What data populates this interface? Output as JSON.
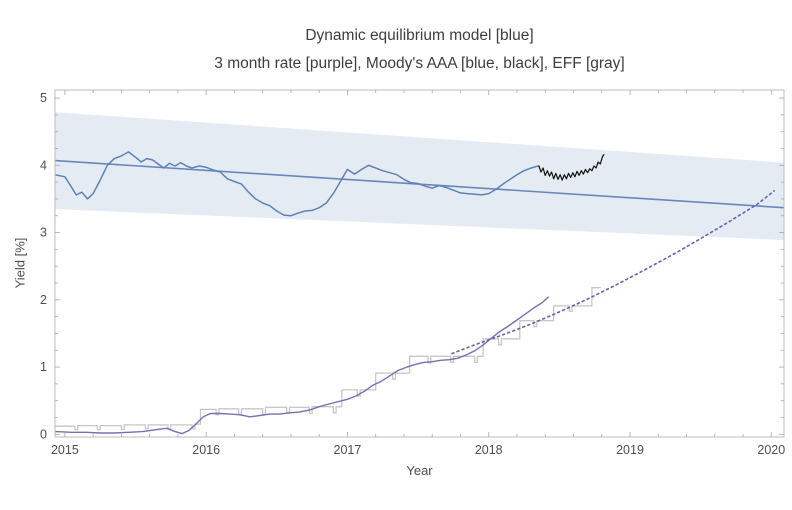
{
  "chart_data": {
    "type": "line",
    "title": "Dynamic equilibrium model [blue]",
    "subtitle": "3 month rate [purple], Moody's AAA [blue, black], EFF [gray]",
    "xlabel": "Year",
    "ylabel": "Yield [%]",
    "xlim": [
      2014.93,
      2020.09
    ],
    "ylim": [
      -0.04,
      5.12
    ],
    "xticks": [
      2015,
      2016,
      2017,
      2018,
      2019,
      2020
    ],
    "yticks": [
      0,
      1,
      2,
      3,
      4,
      5
    ],
    "x_minor_step": 0.2,
    "y_minor_step": 0.25,
    "grid": false,
    "legend_position": "none",
    "frame_color": "#bcbcbc",
    "tick_color": "#a6a6a6",
    "label_color": "#4e4e4e",
    "title_color": "#3d3d3d",
    "band": {
      "name": "equilibrium-confidence-band",
      "color": "#5e82b5",
      "opacity": 0.16,
      "x": [
        2014.93,
        2020.09
      ],
      "top": [
        4.79,
        4.04
      ],
      "bottom": [
        3.35,
        2.89
      ]
    },
    "series": [
      {
        "name": "dynamic-equilibrium-model-line",
        "color": "#6787bb",
        "width": 1.6,
        "style": "solid",
        "points": [
          [
            2014.93,
            4.07
          ],
          [
            2020.09,
            3.37
          ]
        ]
      },
      {
        "name": "eff-line",
        "color": "#c6c6c6",
        "width": 1.3,
        "style": "solid",
        "points": [
          [
            2014.93,
            0.12
          ],
          [
            2015.07,
            0.12
          ],
          [
            2015.07,
            0.07
          ],
          [
            2015.09,
            0.07
          ],
          [
            2015.09,
            0.13
          ],
          [
            2015.23,
            0.13
          ],
          [
            2015.23,
            0.07
          ],
          [
            2015.25,
            0.07
          ],
          [
            2015.25,
            0.13
          ],
          [
            2015.4,
            0.13
          ],
          [
            2015.4,
            0.07
          ],
          [
            2015.42,
            0.07
          ],
          [
            2015.42,
            0.14
          ],
          [
            2015.57,
            0.14
          ],
          [
            2015.57,
            0.08
          ],
          [
            2015.59,
            0.08
          ],
          [
            2015.59,
            0.14
          ],
          [
            2015.73,
            0.14
          ],
          [
            2015.73,
            0.08
          ],
          [
            2015.75,
            0.08
          ],
          [
            2015.75,
            0.14
          ],
          [
            2015.9,
            0.14
          ],
          [
            2015.9,
            0.08
          ],
          [
            2015.92,
            0.08
          ],
          [
            2015.92,
            0.15
          ],
          [
            2015.96,
            0.15
          ],
          [
            2015.96,
            0.37
          ],
          [
            2016.07,
            0.37
          ],
          [
            2016.07,
            0.29
          ],
          [
            2016.09,
            0.29
          ],
          [
            2016.09,
            0.38
          ],
          [
            2016.23,
            0.38
          ],
          [
            2016.23,
            0.3
          ],
          [
            2016.25,
            0.3
          ],
          [
            2016.25,
            0.38
          ],
          [
            2016.4,
            0.38
          ],
          [
            2016.4,
            0.3
          ],
          [
            2016.42,
            0.3
          ],
          [
            2016.42,
            0.4
          ],
          [
            2016.57,
            0.4
          ],
          [
            2016.57,
            0.31
          ],
          [
            2016.59,
            0.31
          ],
          [
            2016.59,
            0.4
          ],
          [
            2016.73,
            0.4
          ],
          [
            2016.73,
            0.31
          ],
          [
            2016.75,
            0.31
          ],
          [
            2016.75,
            0.41
          ],
          [
            2016.9,
            0.41
          ],
          [
            2016.9,
            0.32
          ],
          [
            2016.92,
            0.32
          ],
          [
            2016.92,
            0.41
          ],
          [
            2016.96,
            0.41
          ],
          [
            2016.96,
            0.66
          ],
          [
            2017.07,
            0.66
          ],
          [
            2017.07,
            0.57
          ],
          [
            2017.09,
            0.57
          ],
          [
            2017.09,
            0.66
          ],
          [
            2017.2,
            0.66
          ],
          [
            2017.2,
            0.91
          ],
          [
            2017.32,
            0.91
          ],
          [
            2017.32,
            0.82
          ],
          [
            2017.34,
            0.82
          ],
          [
            2017.34,
            0.91
          ],
          [
            2017.44,
            0.91
          ],
          [
            2017.44,
            1.16
          ],
          [
            2017.57,
            1.16
          ],
          [
            2017.57,
            1.06
          ],
          [
            2017.59,
            1.06
          ],
          [
            2017.59,
            1.16
          ],
          [
            2017.73,
            1.16
          ],
          [
            2017.73,
            1.07
          ],
          [
            2017.75,
            1.07
          ],
          [
            2017.75,
            1.16
          ],
          [
            2017.9,
            1.16
          ],
          [
            2017.9,
            1.07
          ],
          [
            2017.92,
            1.07
          ],
          [
            2017.92,
            1.16
          ],
          [
            2017.96,
            1.16
          ],
          [
            2017.96,
            1.42
          ],
          [
            2018.07,
            1.42
          ],
          [
            2018.07,
            1.33
          ],
          [
            2018.09,
            1.33
          ],
          [
            2018.09,
            1.42
          ],
          [
            2018.22,
            1.42
          ],
          [
            2018.22,
            1.69
          ],
          [
            2018.32,
            1.69
          ],
          [
            2018.32,
            1.6
          ],
          [
            2018.34,
            1.6
          ],
          [
            2018.34,
            1.69
          ],
          [
            2018.46,
            1.69
          ],
          [
            2018.46,
            1.91
          ],
          [
            2018.57,
            1.91
          ],
          [
            2018.57,
            1.83
          ],
          [
            2018.59,
            1.83
          ],
          [
            2018.59,
            1.91
          ],
          [
            2018.73,
            1.91
          ],
          [
            2018.73,
            2.18
          ],
          [
            2018.79,
            2.18
          ]
        ]
      },
      {
        "name": "three-month-rate-line",
        "color": "#7a6eb0",
        "width": 1.4,
        "style": "solid",
        "points": [
          [
            2014.93,
            0.04
          ],
          [
            2015.05,
            0.03
          ],
          [
            2015.15,
            0.03
          ],
          [
            2015.25,
            0.02
          ],
          [
            2015.35,
            0.02
          ],
          [
            2015.45,
            0.03
          ],
          [
            2015.55,
            0.04
          ],
          [
            2015.65,
            0.07
          ],
          [
            2015.72,
            0.09
          ],
          [
            2015.78,
            0.04
          ],
          [
            2015.83,
            0.01
          ],
          [
            2015.88,
            0.06
          ],
          [
            2015.93,
            0.16
          ],
          [
            2015.98,
            0.26
          ],
          [
            2016.03,
            0.31
          ],
          [
            2016.1,
            0.31
          ],
          [
            2016.17,
            0.3
          ],
          [
            2016.24,
            0.29
          ],
          [
            2016.31,
            0.26
          ],
          [
            2016.38,
            0.28
          ],
          [
            2016.45,
            0.3
          ],
          [
            2016.52,
            0.3
          ],
          [
            2016.59,
            0.32
          ],
          [
            2016.66,
            0.33
          ],
          [
            2016.73,
            0.36
          ],
          [
            2016.8,
            0.41
          ],
          [
            2016.87,
            0.45
          ],
          [
            2016.94,
            0.49
          ],
          [
            2017.0,
            0.52
          ],
          [
            2017.06,
            0.57
          ],
          [
            2017.12,
            0.64
          ],
          [
            2017.18,
            0.73
          ],
          [
            2017.24,
            0.79
          ],
          [
            2017.3,
            0.87
          ],
          [
            2017.36,
            0.95
          ],
          [
            2017.42,
            1.0
          ],
          [
            2017.48,
            1.04
          ],
          [
            2017.54,
            1.07
          ],
          [
            2017.6,
            1.08
          ],
          [
            2017.66,
            1.1
          ],
          [
            2017.72,
            1.11
          ],
          [
            2017.78,
            1.13
          ],
          [
            2017.84,
            1.18
          ],
          [
            2017.9,
            1.24
          ],
          [
            2017.96,
            1.33
          ],
          [
            2018.02,
            1.43
          ],
          [
            2018.08,
            1.53
          ],
          [
            2018.14,
            1.61
          ],
          [
            2018.2,
            1.7
          ],
          [
            2018.26,
            1.79
          ],
          [
            2018.32,
            1.88
          ],
          [
            2018.38,
            1.96
          ],
          [
            2018.42,
            2.04
          ]
        ]
      },
      {
        "name": "three-month-rate-model-dotted-line",
        "color": "#6a5fae",
        "width": 1.6,
        "style": "dotted",
        "points": [
          [
            2017.74,
            1.2
          ],
          [
            2017.9,
            1.33
          ],
          [
            2018.1,
            1.48
          ],
          [
            2018.3,
            1.64
          ],
          [
            2018.5,
            1.82
          ],
          [
            2018.7,
            2.01
          ],
          [
            2018.9,
            2.22
          ],
          [
            2019.1,
            2.44
          ],
          [
            2019.3,
            2.67
          ],
          [
            2019.5,
            2.91
          ],
          [
            2019.7,
            3.16
          ],
          [
            2019.9,
            3.42
          ],
          [
            2020.02,
            3.62
          ]
        ]
      },
      {
        "name": "moodys-aaa-line",
        "color": "#5e82b5",
        "width": 1.5,
        "style": "solid",
        "points": [
          [
            2014.93,
            3.86
          ],
          [
            2015.0,
            3.83
          ],
          [
            2015.04,
            3.7
          ],
          [
            2015.08,
            3.56
          ],
          [
            2015.12,
            3.6
          ],
          [
            2015.16,
            3.5
          ],
          [
            2015.2,
            3.58
          ],
          [
            2015.25,
            3.78
          ],
          [
            2015.3,
            4.0
          ],
          [
            2015.35,
            4.1
          ],
          [
            2015.4,
            4.14
          ],
          [
            2015.45,
            4.2
          ],
          [
            2015.5,
            4.12
          ],
          [
            2015.54,
            4.05
          ],
          [
            2015.58,
            4.1
          ],
          [
            2015.62,
            4.08
          ],
          [
            2015.66,
            4.02
          ],
          [
            2015.7,
            3.96
          ],
          [
            2015.74,
            4.03
          ],
          [
            2015.78,
            3.99
          ],
          [
            2015.82,
            4.04
          ],
          [
            2015.86,
            3.99
          ],
          [
            2015.9,
            3.96
          ],
          [
            2015.95,
            3.99
          ],
          [
            2016.0,
            3.97
          ],
          [
            2016.05,
            3.93
          ],
          [
            2016.1,
            3.9
          ],
          [
            2016.15,
            3.8
          ],
          [
            2016.2,
            3.76
          ],
          [
            2016.25,
            3.72
          ],
          [
            2016.3,
            3.6
          ],
          [
            2016.35,
            3.5
          ],
          [
            2016.4,
            3.44
          ],
          [
            2016.45,
            3.4
          ],
          [
            2016.5,
            3.32
          ],
          [
            2016.55,
            3.26
          ],
          [
            2016.6,
            3.25
          ],
          [
            2016.65,
            3.29
          ],
          [
            2016.7,
            3.32
          ],
          [
            2016.75,
            3.33
          ],
          [
            2016.8,
            3.37
          ],
          [
            2016.85,
            3.44
          ],
          [
            2016.9,
            3.58
          ],
          [
            2016.95,
            3.76
          ],
          [
            2017.0,
            3.94
          ],
          [
            2017.05,
            3.87
          ],
          [
            2017.1,
            3.94
          ],
          [
            2017.15,
            4.0
          ],
          [
            2017.2,
            3.96
          ],
          [
            2017.25,
            3.92
          ],
          [
            2017.3,
            3.89
          ],
          [
            2017.35,
            3.86
          ],
          [
            2017.4,
            3.79
          ],
          [
            2017.45,
            3.74
          ],
          [
            2017.5,
            3.73
          ],
          [
            2017.55,
            3.69
          ],
          [
            2017.6,
            3.66
          ],
          [
            2017.65,
            3.7
          ],
          [
            2017.7,
            3.67
          ],
          [
            2017.75,
            3.63
          ],
          [
            2017.8,
            3.59
          ],
          [
            2017.85,
            3.58
          ],
          [
            2017.9,
            3.57
          ],
          [
            2017.95,
            3.56
          ],
          [
            2018.0,
            3.58
          ],
          [
            2018.05,
            3.64
          ],
          [
            2018.1,
            3.72
          ],
          [
            2018.15,
            3.79
          ],
          [
            2018.2,
            3.86
          ],
          [
            2018.25,
            3.92
          ],
          [
            2018.3,
            3.96
          ],
          [
            2018.35,
            3.99
          ]
        ]
      },
      {
        "name": "moodys-aaa-recent-black-line",
        "color": "#111111",
        "width": 1.2,
        "style": "solid",
        "points": [
          [
            2018.355,
            3.99
          ],
          [
            2018.37,
            3.9
          ],
          [
            2018.385,
            3.96
          ],
          [
            2018.4,
            3.85
          ],
          [
            2018.415,
            3.92
          ],
          [
            2018.43,
            3.84
          ],
          [
            2018.445,
            3.9
          ],
          [
            2018.46,
            3.8
          ],
          [
            2018.475,
            3.88
          ],
          [
            2018.49,
            3.79
          ],
          [
            2018.505,
            3.86
          ],
          [
            2018.52,
            3.78
          ],
          [
            2018.535,
            3.86
          ],
          [
            2018.55,
            3.8
          ],
          [
            2018.565,
            3.88
          ],
          [
            2018.58,
            3.82
          ],
          [
            2018.595,
            3.89
          ],
          [
            2018.61,
            3.83
          ],
          [
            2018.625,
            3.91
          ],
          [
            2018.64,
            3.85
          ],
          [
            2018.655,
            3.92
          ],
          [
            2018.67,
            3.87
          ],
          [
            2018.685,
            3.94
          ],
          [
            2018.7,
            3.89
          ],
          [
            2018.715,
            3.95
          ],
          [
            2018.73,
            3.92
          ],
          [
            2018.745,
            3.99
          ],
          [
            2018.76,
            3.96
          ],
          [
            2018.775,
            4.05
          ],
          [
            2018.79,
            4.02
          ],
          [
            2018.805,
            4.13
          ],
          [
            2018.815,
            4.16
          ]
        ]
      }
    ]
  }
}
